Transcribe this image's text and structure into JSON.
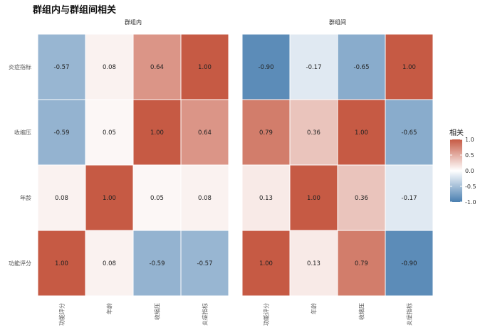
{
  "chart_data": {
    "type": "heatmap",
    "title": "群组内与群组间相关",
    "facets": [
      {
        "name": "群组内",
        "x_categories": [
          "功能评分",
          "年龄",
          "收缩压",
          "炎症指标"
        ],
        "y_categories": [
          "炎症指标",
          "收缩压",
          "年龄",
          "功能评分"
        ],
        "values": [
          [
            -0.57,
            0.08,
            0.64,
            1.0
          ],
          [
            -0.59,
            0.05,
            1.0,
            0.64
          ],
          [
            0.08,
            1.0,
            0.05,
            0.08
          ],
          [
            1.0,
            0.08,
            -0.59,
            -0.57
          ]
        ]
      },
      {
        "name": "群组间",
        "x_categories": [
          "功能评分",
          "年龄",
          "收缩压",
          "炎症指标"
        ],
        "y_categories": [
          "炎症指标",
          "收缩压",
          "年龄",
          "功能评分"
        ],
        "values": [
          [
            -0.9,
            -0.17,
            -0.65,
            1.0
          ],
          [
            0.79,
            0.36,
            1.0,
            -0.65
          ],
          [
            0.13,
            1.0,
            0.36,
            -0.17
          ],
          [
            1.0,
            0.13,
            0.79,
            -0.9
          ]
        ]
      }
    ],
    "legend": {
      "title": "相关",
      "ticks": [
        "1.0",
        "0.5",
        "0.0",
        "-0.5",
        "-1.0"
      ],
      "tick_values": [
        1.0,
        0.5,
        0.0,
        -0.5,
        -1.0
      ],
      "range": [
        -1,
        1
      ],
      "position": "right"
    },
    "colors": {
      "low": "#4a7fb0",
      "mid": "#ffffff",
      "high": "#c65a44"
    }
  }
}
